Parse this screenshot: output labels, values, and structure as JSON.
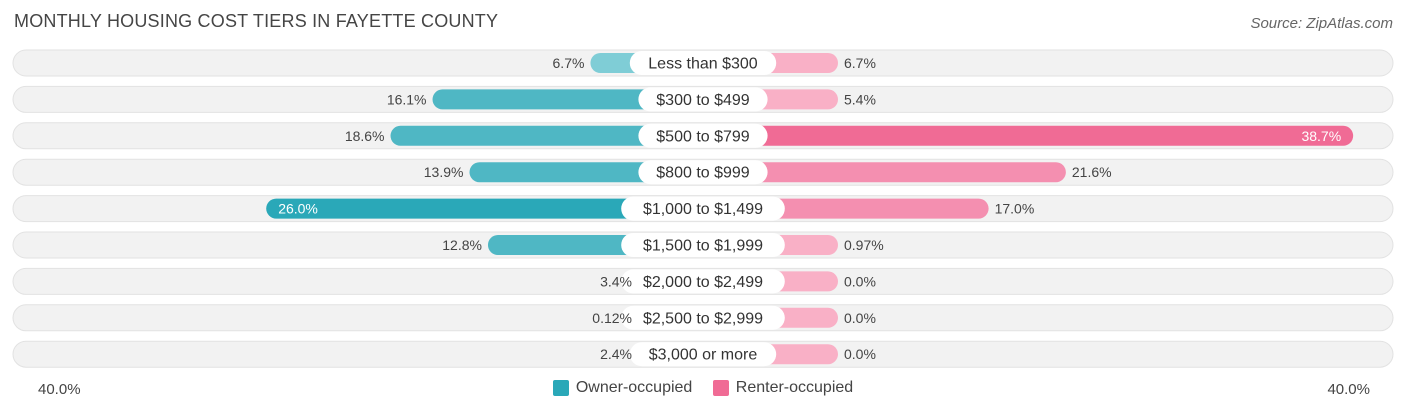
{
  "title": "MONTHLY HOUSING COST TIERS IN FAYETTE COUNTY",
  "source": "Source: ZipAtlas.com",
  "colors": {
    "owner_strong": "#2aa8b8",
    "owner_light": "#7fcdd6",
    "renter_strong": "#f06b95",
    "renter_light": "#f9b0c6",
    "track": "#f0f0f0"
  },
  "chart_data": {
    "type": "bar",
    "orientation": "horizontal-diverging",
    "categories": [
      "Less than $300",
      "$300 to $499",
      "$500 to $799",
      "$800 to $999",
      "$1,000 to $1,499",
      "$1,500 to $1,999",
      "$2,000 to $2,499",
      "$2,500 to $2,999",
      "$3,000 or more"
    ],
    "series": [
      {
        "name": "Owner-occupied",
        "values": [
          6.7,
          16.1,
          18.6,
          13.9,
          26.0,
          12.8,
          3.4,
          0.12,
          2.4
        ],
        "labels": [
          "6.7%",
          "16.1%",
          "18.6%",
          "13.9%",
          "26.0%",
          "12.8%",
          "3.4%",
          "0.12%",
          "2.4%"
        ]
      },
      {
        "name": "Renter-occupied",
        "values": [
          6.7,
          5.4,
          38.7,
          21.6,
          17.0,
          0.97,
          0.0,
          0.0,
          0.0
        ],
        "labels": [
          "6.7%",
          "5.4%",
          "38.7%",
          "21.6%",
          "17.0%",
          "0.97%",
          "0.0%",
          "0.0%",
          "0.0%"
        ]
      }
    ],
    "xlim": [
      -40,
      40
    ],
    "axis_min_label": "40.0%",
    "axis_max_label": "40.0%",
    "legend": "bottom-center"
  }
}
